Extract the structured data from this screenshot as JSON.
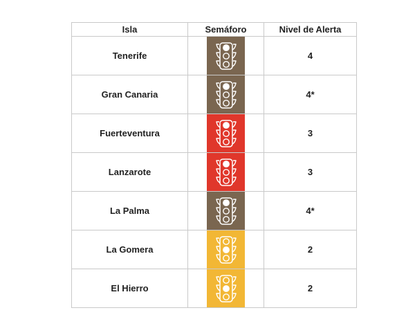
{
  "table": {
    "headers": {
      "isla": "Isla",
      "semaforo": "Semáforo",
      "nivel": "Nivel de Alerta"
    },
    "rows": [
      {
        "isla": "Tenerife",
        "nivel": "4",
        "color": "#7a6650",
        "lit": "top",
        "icon": "traffic-light-icon"
      },
      {
        "isla": "Gran Canaria",
        "nivel": "4*",
        "color": "#7a6650",
        "lit": "top",
        "icon": "traffic-light-icon"
      },
      {
        "isla": "Fuerteventura",
        "nivel": "3",
        "color": "#e0372b",
        "lit": "top",
        "icon": "traffic-light-icon"
      },
      {
        "isla": "Lanzarote",
        "nivel": "3",
        "color": "#e0372b",
        "lit": "top",
        "icon": "traffic-light-icon"
      },
      {
        "isla": "La Palma",
        "nivel": "4*",
        "color": "#7a6650",
        "lit": "top",
        "icon": "traffic-light-icon"
      },
      {
        "isla": "La Gomera",
        "nivel": "2",
        "color": "#f2b735",
        "lit": "middle",
        "icon": "traffic-light-icon"
      },
      {
        "isla": "El Hierro",
        "nivel": "2",
        "color": "#f2b735",
        "lit": "middle",
        "icon": "traffic-light-icon"
      }
    ]
  }
}
